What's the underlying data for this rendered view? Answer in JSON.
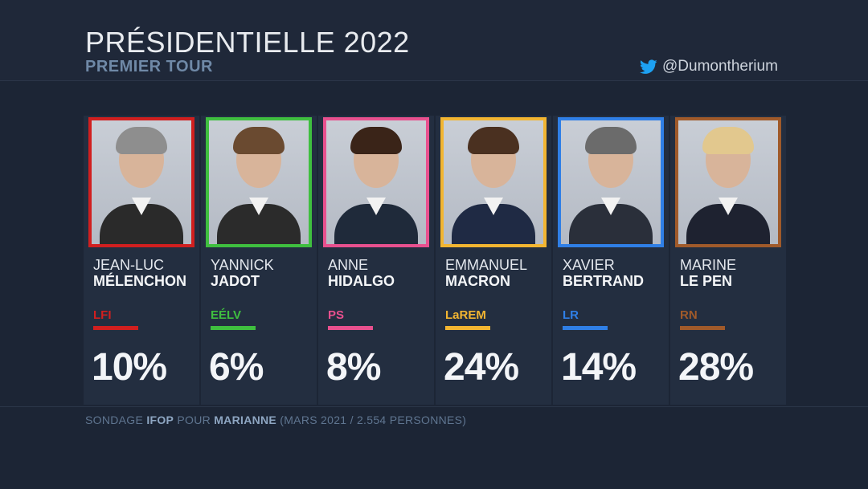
{
  "header": {
    "title": "PRÉSIDENTIELLE 2022",
    "subtitle": "PREMIER TOUR",
    "handle": "@Dumontherium"
  },
  "candidates": [
    {
      "first": "JEAN-LUC",
      "last": "MÉLENCHON",
      "party": "LFI",
      "percent": "10%",
      "color": "#d11f1f",
      "hair": "#8e8e8e",
      "suit": "#2a2a2a"
    },
    {
      "first": "YANNICK",
      "last": "JADOT",
      "party": "EÉLV",
      "percent": "6%",
      "color": "#3fbf3f",
      "hair": "#6a4a30",
      "suit": "#2b2b2b"
    },
    {
      "first": "ANNE",
      "last": "HIDALGO",
      "party": "PS",
      "percent": "8%",
      "color": "#e8508e",
      "hair": "#3a2418",
      "suit": "#1f2a3a"
    },
    {
      "first": "EMMANUEL",
      "last": "MACRON",
      "party": "LaREM",
      "percent": "24%",
      "color": "#f2b531",
      "hair": "#4a3020",
      "suit": "#1f2a44"
    },
    {
      "first": "XAVIER",
      "last": "BERTRAND",
      "party": "LR",
      "percent": "14%",
      "color": "#2f7fe6",
      "hair": "#6b6b6b",
      "suit": "#2a2f3a"
    },
    {
      "first": "MARINE",
      "last": "LE PEN",
      "party": "RN",
      "percent": "28%",
      "color": "#a05a2a",
      "hair": "#e2c88e",
      "suit": "#1e2230"
    }
  ],
  "footer": {
    "prefix": "SONDAGE ",
    "pollster": "IFOP",
    "middle": " POUR ",
    "outlet": "MARIANNE",
    "suffix": " (MARS 2021 / 2.554 PERSONNES)"
  }
}
